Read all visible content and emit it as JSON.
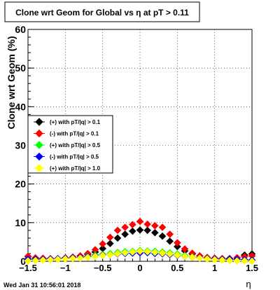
{
  "chart_data": {
    "type": "scatter",
    "title": "Clone wrt Geom for Global vs   η at pT > 0.11",
    "xlabel": "η",
    "ylabel": "Clone wrt Geom (%)",
    "xlim": [
      -1.5,
      1.5
    ],
    "ylim": [
      0,
      60
    ],
    "x_ticks": [
      "−1.5",
      "−1",
      "−0.5",
      "0",
      "0.5",
      "1",
      "1.5"
    ],
    "x_tick_values": [
      -1.5,
      -1,
      -0.5,
      0,
      0.5,
      1,
      1.5
    ],
    "y_ticks": [
      "0",
      "10",
      "20",
      "30",
      "40",
      "50",
      "60"
    ],
    "y_tick_values": [
      0,
      10,
      20,
      30,
      40,
      50,
      60
    ],
    "grid": true,
    "legend_position": "left-middle",
    "footer": "Wed Jan 31 10:56:01 2018",
    "x": [
      -1.5,
      -1.4,
      -1.3,
      -1.2,
      -1.1,
      -1.0,
      -0.9,
      -0.8,
      -0.7,
      -0.6,
      -0.5,
      -0.4,
      -0.3,
      -0.2,
      -0.1,
      0.0,
      0.1,
      0.2,
      0.3,
      0.4,
      0.5,
      0.6,
      0.7,
      0.8,
      0.9,
      1.0,
      1.1,
      1.2,
      1.3,
      1.4,
      1.5
    ],
    "series": [
      {
        "name": "(+) with pT/|q| > 0.1",
        "color": "#000000",
        "values": [
          1.2,
          0.8,
          0.7,
          0.6,
          0.6,
          0.8,
          1.0,
          1.4,
          1.8,
          2.4,
          3.3,
          4.6,
          6.0,
          7.0,
          7.8,
          8.1,
          8.0,
          7.4,
          6.5,
          5.2,
          3.8,
          2.7,
          1.9,
          1.4,
          1.0,
          0.8,
          0.7,
          0.7,
          0.9,
          1.6,
          1.9
        ]
      },
      {
        "name": "(-) with pT/|q| > 0.1",
        "color": "#ff0000",
        "values": [
          1.3,
          0.9,
          0.8,
          0.7,
          0.7,
          0.9,
          1.1,
          1.4,
          2.0,
          3.0,
          4.5,
          6.2,
          8.0,
          8.8,
          9.5,
          10.3,
          9.6,
          9.2,
          8.8,
          7.0,
          4.8,
          3.2,
          2.1,
          1.4,
          1.0,
          0.8,
          0.7,
          0.6,
          0.9,
          1.2,
          1.4
        ]
      },
      {
        "name": "(+) with pT/|q| > 0.5",
        "color": "#00ff00",
        "values": [
          0.4,
          0.5,
          0.4,
          0.5,
          0.6,
          0.7,
          0.8,
          1.0,
          1.3,
          1.6,
          1.8,
          2.0,
          2.3,
          2.5,
          2.6,
          2.8,
          2.7,
          2.6,
          2.4,
          2.2,
          1.9,
          1.5,
          1.1,
          0.9,
          0.7,
          0.5,
          0.4,
          0.4,
          0.4,
          0.3,
          0.3
        ]
      },
      {
        "name": "(-) with pT/|q| > 0.5",
        "color": "#0000ff",
        "values": [
          0.6,
          0.5,
          0.5,
          0.6,
          0.7,
          0.8,
          0.9,
          1.0,
          1.2,
          1.4,
          1.6,
          1.7,
          1.9,
          2.0,
          2.1,
          2.2,
          2.2,
          2.0,
          1.9,
          1.7,
          1.5,
          1.3,
          1.0,
          0.9,
          0.7,
          0.6,
          0.5,
          0.5,
          0.5,
          0.4,
          0.3
        ]
      },
      {
        "name": "(+) with pT/|q| > 1.0",
        "color": "#ffff00",
        "values": [
          0.1,
          0.2,
          0.3,
          0.4,
          0.5,
          0.6,
          0.7,
          0.8,
          1.0,
          1.3,
          1.5,
          1.7,
          2.0,
          2.2,
          2.4,
          2.6,
          2.5,
          2.3,
          2.1,
          1.9,
          1.6,
          1.3,
          1.0,
          0.8,
          0.6,
          0.4,
          0.3,
          0.2,
          0.1,
          0.1,
          0.0
        ]
      }
    ]
  }
}
